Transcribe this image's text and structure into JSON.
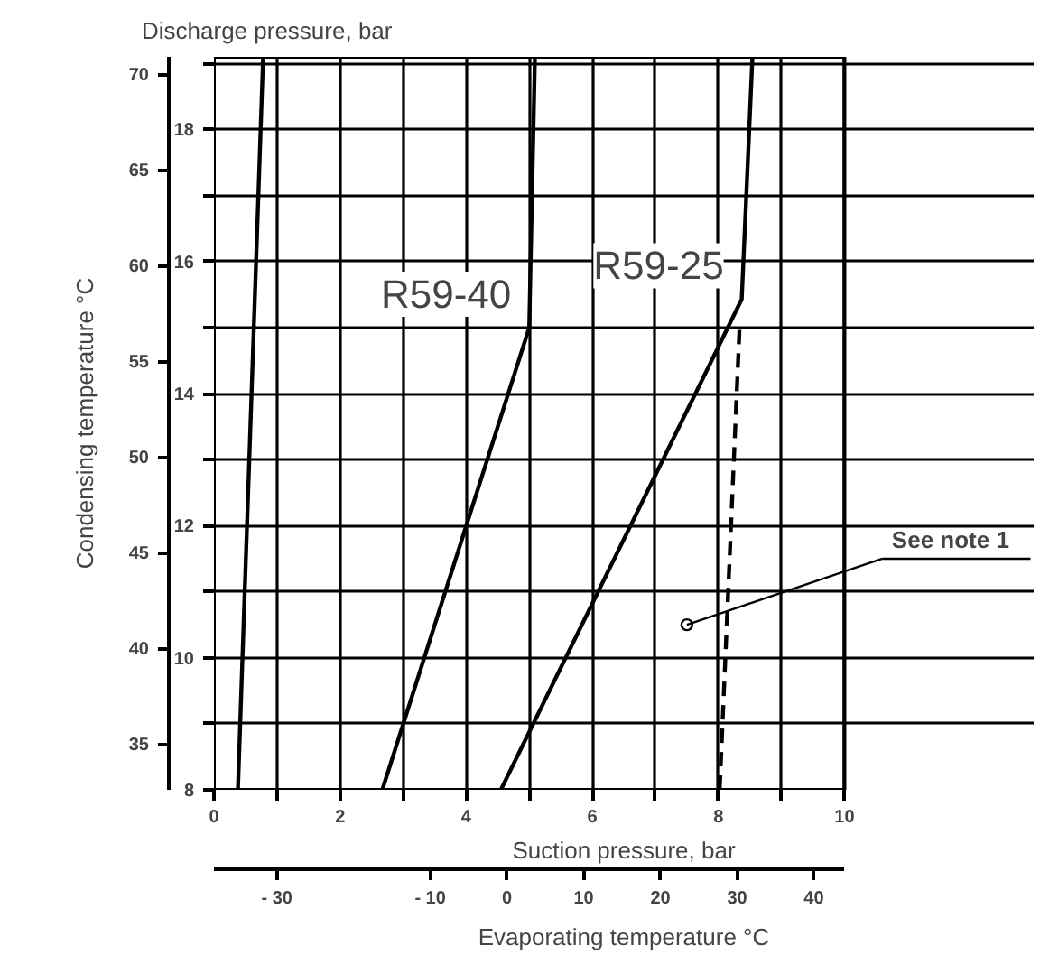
{
  "chart_data": {
    "type": "line",
    "ylabel": "Discharge pressure, bar",
    "xlabel": "Suction pressure, bar",
    "y2label": "Condensing temperature °C",
    "x2label": "Evaporating temperature °C",
    "xlim": [
      0,
      10
    ],
    "xticks": [
      0,
      {
        "value": 1,
        "label": null
      },
      2,
      {
        "value": 3,
        "label": null
      },
      4,
      {
        "value": 5,
        "label": null
      },
      6,
      {
        "value": 7,
        "label": null
      },
      8,
      {
        "value": 9,
        "label": null
      },
      10
    ],
    "ylim": [
      8,
      19.1
    ],
    "yticks": [
      8,
      {
        "value": 9,
        "label": null
      },
      10,
      {
        "value": 11,
        "label": null
      },
      12,
      {
        "value": 13,
        "label": null
      },
      14,
      {
        "value": 15,
        "label": null
      },
      16,
      {
        "value": 17,
        "label": null
      },
      18,
      {
        "value": 19,
        "label": null
      }
    ],
    "y2lim": [
      32.6,
      70.9
    ],
    "y2ticks": [
      35,
      40,
      45,
      50,
      55,
      60,
      65,
      70
    ],
    "x2lim": [
      -38.2,
      44.0
    ],
    "x2ticks": [
      {
        "value": -30,
        "label": "- 30"
      },
      {
        "value": -10,
        "label": "- 10"
      },
      0,
      10,
      20,
      30,
      40
    ],
    "grid": true,
    "series": [
      {
        "color": "#000000",
        "x": [
          0.38,
          0.78
        ],
        "values": [
          8,
          19.1
        ]
      },
      {
        "name": "R59-40",
        "color": "#000000",
        "x": [
          2.67,
          5.0,
          5.09
        ],
        "values": [
          8,
          15.0,
          19.1
        ]
      },
      {
        "name": "R59-25",
        "color": "#000000",
        "x": [
          4.55,
          8.37,
          8.54
        ],
        "values": [
          8,
          15.43,
          19.1
        ]
      },
      {
        "color": "#000000",
        "x": [
          8.02,
          8.34
        ],
        "values": [
          8,
          15.1
        ],
        "line_style": "dashed"
      }
    ],
    "annotations": [
      {
        "text": "See note 1",
        "x": 7.5,
        "y": 10.5
      }
    ]
  }
}
